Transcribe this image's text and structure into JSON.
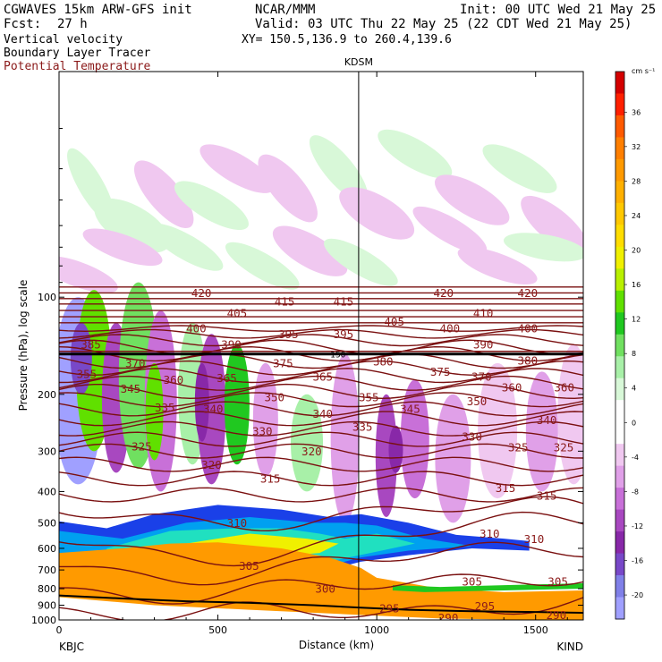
{
  "header": {
    "model": "CGWAVES 15km ARW-GFS init",
    "fcst_label": "Fcst:",
    "fcst_value": "27 h",
    "org": "NCAR/MMM",
    "init": "Init: 00 UTC Wed 21 May 25",
    "valid": "Valid: 03 UTC Thu 22 May 25 (22 CDT Wed 21 May 25)",
    "xy": "XY= 150.5,136.9 to 260.4,139.6",
    "fields": [
      "Vertical velocity",
      "Boundary Layer Tracer",
      "Potential Temperature"
    ],
    "colors": {
      "potential_temperature": "#8b1a1a"
    }
  },
  "chart_data": {
    "type": "heatmap",
    "marker_label": "KDSM",
    "marker_x_km": 943,
    "xlabel": "Distance (km)",
    "ylabel": "Pressure (hPa), log scale",
    "xlim": [
      0,
      1650
    ],
    "x_ticks": [
      0,
      500,
      1000,
      1500
    ],
    "y_scale": "log",
    "ylim": [
      1000,
      20
    ],
    "y_ticks": [
      100,
      200,
      300,
      400,
      500,
      600,
      700,
      800,
      900,
      1000
    ],
    "endpoints": {
      "left": "KBJC",
      "right": "KIND"
    },
    "tropopause_label": "150",
    "colorbar": {
      "unit": "cm s⁻¹",
      "labels": [
        "36",
        "32",
        "28",
        "24",
        "20",
        "16",
        "12",
        "8",
        "4",
        "0",
        "-4",
        "-8",
        "-12",
        "-16",
        "-20"
      ],
      "colors": [
        "#d40000",
        "#ff2000",
        "#ff5a00",
        "#ff7f00",
        "#ff9a00",
        "#ffb000",
        "#ffc800",
        "#ffdd00",
        "#f0f000",
        "#b8f000",
        "#60e000",
        "#20c820",
        "#70e060",
        "#a8f0a8",
        "#d8f8d8",
        "#ffffff",
        "#ffffff",
        "#f0c8f0",
        "#e0a0e8",
        "#c870d8",
        "#a848c0",
        "#8828a8",
        "#7848c8",
        "#8080e8",
        "#a0a0ff"
      ]
    },
    "theta_labels": [
      {
        "text": "420",
        "x_km": 448,
        "p": 97
      },
      {
        "text": "415",
        "x_km": 710,
        "p": 103
      },
      {
        "text": "415",
        "x_km": 895,
        "p": 103
      },
      {
        "text": "420",
        "x_km": 1210,
        "p": 97
      },
      {
        "text": "420",
        "x_km": 1475,
        "p": 97
      },
      {
        "text": "405",
        "x_km": 560,
        "p": 112
      },
      {
        "text": "410",
        "x_km": 1335,
        "p": 112
      },
      {
        "text": "400",
        "x_km": 432,
        "p": 125
      },
      {
        "text": "395",
        "x_km": 722,
        "p": 130
      },
      {
        "text": "395",
        "x_km": 895,
        "p": 130
      },
      {
        "text": "405",
        "x_km": 1055,
        "p": 119
      },
      {
        "text": "400",
        "x_km": 1230,
        "p": 125
      },
      {
        "text": "400",
        "x_km": 1475,
        "p": 125
      },
      {
        "text": "385",
        "x_km": 100,
        "p": 140
      },
      {
        "text": "390",
        "x_km": 542,
        "p": 140
      },
      {
        "text": "390",
        "x_km": 1335,
        "p": 140
      },
      {
        "text": "370",
        "x_km": 240,
        "p": 160
      },
      {
        "text": "375",
        "x_km": 705,
        "p": 160
      },
      {
        "text": "380",
        "x_km": 1020,
        "p": 158
      },
      {
        "text": "380",
        "x_km": 1475,
        "p": 157
      },
      {
        "text": "355",
        "x_km": 87,
        "p": 173
      },
      {
        "text": "360",
        "x_km": 360,
        "p": 180
      },
      {
        "text": "365",
        "x_km": 528,
        "p": 178
      },
      {
        "text": "365",
        "x_km": 830,
        "p": 176
      },
      {
        "text": "375",
        "x_km": 1200,
        "p": 170
      },
      {
        "text": "370",
        "x_km": 1330,
        "p": 176
      },
      {
        "text": "360",
        "x_km": 1425,
        "p": 190
      },
      {
        "text": "360",
        "x_km": 1590,
        "p": 190
      },
      {
        "text": "345",
        "x_km": 225,
        "p": 192
      },
      {
        "text": "350",
        "x_km": 678,
        "p": 204
      },
      {
        "text": "355",
        "x_km": 975,
        "p": 204
      },
      {
        "text": "345",
        "x_km": 1105,
        "p": 222
      },
      {
        "text": "350",
        "x_km": 1315,
        "p": 210
      },
      {
        "text": "335",
        "x_km": 333,
        "p": 220
      },
      {
        "text": "340",
        "x_km": 485,
        "p": 222
      },
      {
        "text": "340",
        "x_km": 830,
        "p": 230
      },
      {
        "text": "335",
        "x_km": 955,
        "p": 252
      },
      {
        "text": "340",
        "x_km": 1535,
        "p": 240
      },
      {
        "text": "330",
        "x_km": 640,
        "p": 260
      },
      {
        "text": "330",
        "x_km": 1300,
        "p": 270
      },
      {
        "text": "325",
        "x_km": 260,
        "p": 290
      },
      {
        "text": "320",
        "x_km": 795,
        "p": 300
      },
      {
        "text": "325",
        "x_km": 1445,
        "p": 292
      },
      {
        "text": "325",
        "x_km": 1588,
        "p": 292
      },
      {
        "text": "320",
        "x_km": 480,
        "p": 330
      },
      {
        "text": "315",
        "x_km": 665,
        "p": 365
      },
      {
        "text": "315",
        "x_km": 1405,
        "p": 390
      },
      {
        "text": "315",
        "x_km": 1535,
        "p": 412
      },
      {
        "text": "310",
        "x_km": 560,
        "p": 500
      },
      {
        "text": "310",
        "x_km": 1355,
        "p": 540
      },
      {
        "text": "310",
        "x_km": 1495,
        "p": 562
      },
      {
        "text": "305",
        "x_km": 598,
        "p": 680
      },
      {
        "text": "305",
        "x_km": 1300,
        "p": 760
      },
      {
        "text": "305",
        "x_km": 1570,
        "p": 760
      },
      {
        "text": "300",
        "x_km": 838,
        "p": 800
      },
      {
        "text": "295",
        "x_km": 1040,
        "p": 920
      },
      {
        "text": "295",
        "x_km": 1340,
        "p": 905
      },
      {
        "text": "290",
        "x_km": 1225,
        "p": 985
      },
      {
        "text": "290",
        "x_km": 1565,
        "p": 965
      }
    ]
  }
}
